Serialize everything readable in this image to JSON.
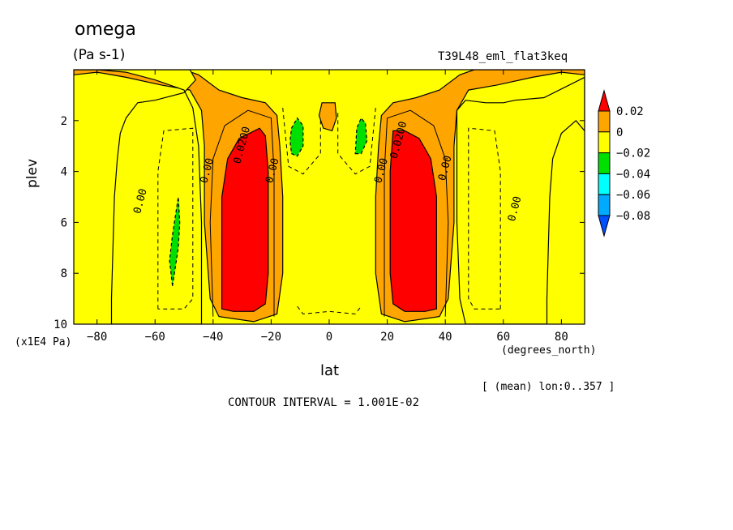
{
  "title": "omega",
  "units": "(Pa s-1)",
  "run_name": "T39L48_eml_flat3keq",
  "ylabel": "plev",
  "yunits": "(x1E4 Pa)",
  "xlabel": "lat",
  "xunits": "(degrees_north)",
  "mean_note": "[ (mean) lon:0..357 ]",
  "contour_interval": "CONTOUR INTERVAL = 1.001E-02",
  "colors": {
    "above_0_02": "#ff0000",
    "0_to_0_02": "#ffa500",
    "m0_02_to_0": "#ffff00",
    "m0_04_to_m0_02": "#00e000",
    "m0_06_to_m0_04": "#00ffff",
    "m0_08_to_m0_06": "#00aaff",
    "below_m0_08": "#0050ff"
  },
  "chart_data": {
    "type": "heatmap",
    "variable": "omega",
    "units": "Pa s-1",
    "x": {
      "label": "lat",
      "units": "degrees_north",
      "range": [
        -88,
        88
      ],
      "ticks": [
        -80,
        -60,
        -40,
        -20,
        0,
        20,
        40,
        60,
        80
      ]
    },
    "y": {
      "label": "plev",
      "units": "x1E4 Pa",
      "range": [
        0,
        10
      ],
      "inverted": true,
      "ticks": [
        2,
        4,
        6,
        8,
        10
      ]
    },
    "contour_interval": 0.01001,
    "colorbar": {
      "levels": [
        0.02,
        0,
        -0.02,
        -0.04,
        -0.06,
        -0.08
      ],
      "labels": [
        "0.02",
        "0",
        "−0.02",
        "−0.04",
        "−0.06",
        "−0.08"
      ]
    },
    "contour_labels": [
      {
        "text": "0.00",
        "lat": -64,
        "plev": 5.2
      },
      {
        "text": "0.00",
        "lat": -41,
        "plev": 4.0
      },
      {
        "text": "0.0200",
        "lat": -29,
        "plev": 3.0
      },
      {
        "text": "0.00",
        "lat": -18.5,
        "plev": 4.0
      },
      {
        "text": "0.00",
        "lat": 19,
        "plev": 4.0
      },
      {
        "text": "0.0200",
        "lat": 25,
        "plev": 2.8
      },
      {
        "text": "0.00",
        "lat": 41,
        "plev": 3.9
      },
      {
        "text": "0.00",
        "lat": 65,
        "plev": 5.5
      }
    ],
    "regions": [
      {
        "band": "0_to_0_02",
        "shape": [
          [
            -88,
            0.2
          ],
          [
            -80,
            0.1
          ],
          [
            -70,
            0.3
          ],
          [
            -58,
            0.6
          ],
          [
            -48,
            0.8
          ],
          [
            -44,
            1.6
          ],
          [
            -43,
            3
          ],
          [
            -43,
            6
          ],
          [
            -41,
            9
          ],
          [
            -38,
            9.7
          ],
          [
            -26,
            9.9
          ],
          [
            -18,
            9.6
          ],
          [
            -16,
            8
          ],
          [
            -16,
            5
          ],
          [
            -17,
            3
          ],
          [
            -18,
            1.8
          ],
          [
            -22,
            1.3
          ],
          [
            -30,
            1.1
          ],
          [
            -38,
            0.8
          ],
          [
            -45,
            0.2
          ],
          [
            -50,
            0
          ],
          [
            -88,
            0
          ],
          [
            -88,
            0.2
          ]
        ]
      },
      {
        "band": "m0_02_to_0",
        "shape": [
          [
            -88,
            0
          ],
          [
            -48,
            0
          ],
          [
            -46,
            0.4
          ],
          [
            -50,
            0.9
          ],
          [
            -60,
            1.2
          ],
          [
            -66,
            1.3
          ],
          [
            -70,
            1.9
          ],
          [
            -72,
            2.5
          ],
          [
            -73,
            3.5
          ],
          [
            -74,
            5
          ],
          [
            -75,
            9
          ],
          [
            -75,
            10
          ],
          [
            -44,
            10
          ],
          [
            -44,
            9
          ],
          [
            -44,
            6
          ],
          [
            -45,
            3
          ],
          [
            -47,
            1.5
          ],
          [
            -50,
            0.8
          ],
          [
            -60,
            0.4
          ],
          [
            -70,
            0.1
          ],
          [
            -80,
            0
          ]
        ]
      },
      {
        "band": "0_to_0_02",
        "shape": [
          [
            88,
            0.2
          ],
          [
            80,
            0.1
          ],
          [
            70,
            0.3
          ],
          [
            58,
            0.6
          ],
          [
            48,
            0.8
          ],
          [
            44,
            1.6
          ],
          [
            43,
            3
          ],
          [
            43,
            6
          ],
          [
            41,
            9
          ],
          [
            38,
            9.7
          ],
          [
            26,
            9.9
          ],
          [
            18,
            9.6
          ],
          [
            16,
            8
          ],
          [
            16,
            5
          ],
          [
            17,
            3
          ],
          [
            18,
            1.8
          ],
          [
            22,
            1.3
          ],
          [
            30,
            1.1
          ],
          [
            38,
            0.8
          ],
          [
            45,
            0.2
          ],
          [
            50,
            0
          ],
          [
            88,
            0
          ],
          [
            88,
            0.2
          ]
        ]
      },
      {
        "band": "m0_02_to_0",
        "shape": [
          [
            88,
            0.3
          ],
          [
            74,
            1.1
          ],
          [
            64,
            1.2
          ],
          [
            60,
            1.3
          ],
          [
            54,
            1.3
          ],
          [
            47,
            1.2
          ],
          [
            44,
            1.6
          ],
          [
            44,
            3
          ],
          [
            44,
            6
          ],
          [
            45,
            9
          ],
          [
            47,
            10
          ],
          [
            75,
            10
          ],
          [
            75,
            9
          ],
          [
            76,
            5
          ],
          [
            77,
            3.5
          ],
          [
            80,
            2.5
          ],
          [
            85,
            2
          ],
          [
            88,
            2.4
          ]
        ]
      },
      {
        "band": "above_0_02",
        "shape": [
          [
            -37,
            9.4
          ],
          [
            -37,
            7
          ],
          [
            -37,
            5
          ],
          [
            -35,
            3.5
          ],
          [
            -31,
            2.7
          ],
          [
            -24,
            2.3
          ],
          [
            -22,
            2.6
          ],
          [
            -21,
            4
          ],
          [
            -21,
            6
          ],
          [
            -21,
            8
          ],
          [
            -22,
            9.2
          ],
          [
            -26,
            9.5
          ],
          [
            -33,
            9.5
          ]
        ]
      },
      {
        "band": "above_0_02",
        "shape": [
          [
            37,
            9.4
          ],
          [
            37,
            7
          ],
          [
            37,
            5
          ],
          [
            35,
            3.5
          ],
          [
            31,
            2.7
          ],
          [
            26,
            2.4
          ],
          [
            22,
            2.4
          ],
          [
            21,
            4
          ],
          [
            21,
            6
          ],
          [
            21,
            8
          ],
          [
            22,
            9.2
          ],
          [
            26,
            9.5
          ],
          [
            33,
            9.5
          ]
        ]
      },
      {
        "band": "m0_04_to_m0_02",
        "shape": [
          [
            -54,
            8.5
          ],
          [
            -52,
            7
          ],
          [
            -51.5,
            6
          ],
          [
            -52,
            5
          ],
          [
            -54,
            6.5
          ],
          [
            -55,
            7.5
          ]
        ]
      },
      {
        "band": "m0_04_to_m0_02",
        "shape": [
          [
            -13,
            3.3
          ],
          [
            -11,
            3.4
          ],
          [
            -9,
            3
          ],
          [
            -9,
            2.2
          ],
          [
            -11,
            1.9
          ],
          [
            -13,
            2.3
          ],
          [
            -13.5,
            2.8
          ]
        ]
      },
      {
        "band": "m0_04_to_m0_02",
        "shape": [
          [
            9,
            3.3
          ],
          [
            11,
            3.3
          ],
          [
            13,
            2.8
          ],
          [
            12.5,
            2.1
          ],
          [
            11,
            1.9
          ],
          [
            9.5,
            2.3
          ]
        ]
      }
    ]
  }
}
